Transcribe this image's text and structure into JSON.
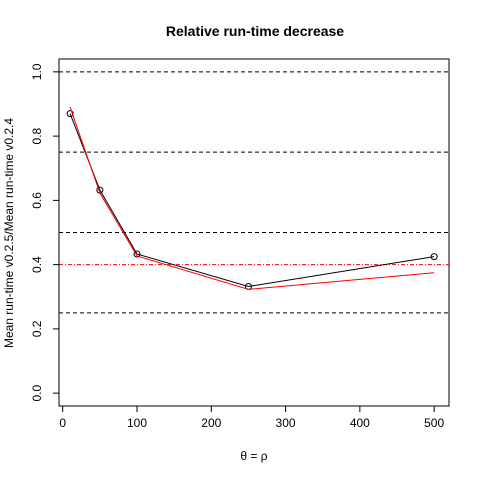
{
  "chart_data": {
    "type": "line",
    "title": "Relative run-time decrease",
    "xlabel": "θ = ρ",
    "ylabel": "Mean run-time v0.2.5/Mean run-time v0.2.4",
    "xlim": [
      -5,
      520
    ],
    "ylim": [
      -0.04,
      1.04
    ],
    "x_ticks": [
      0,
      100,
      200,
      300,
      400,
      500
    ],
    "y_ticks": [
      0.0,
      0.2,
      0.4,
      0.6,
      0.8,
      1.0
    ],
    "x_tick_labels": [
      "0",
      "100",
      "200",
      "300",
      "400",
      "500"
    ],
    "y_tick_labels": [
      "0.0",
      "0.2",
      "0.4",
      "0.6",
      "0.8",
      "1.0"
    ],
    "grid": false,
    "reference_lines": [
      {
        "y": 1.0,
        "style": "dashed",
        "color": "#000000"
      },
      {
        "y": 0.75,
        "style": "dashed",
        "color": "#000000"
      },
      {
        "y": 0.5,
        "style": "dashed",
        "color": "#000000"
      },
      {
        "y": 0.25,
        "style": "dashed",
        "color": "#000000"
      },
      {
        "y": 0.4,
        "style": "dashdot",
        "color": "#ff0000"
      }
    ],
    "series": [
      {
        "color": "#000000",
        "markers": "open-circle",
        "x": [
          10,
          50,
          100,
          250,
          500
        ],
        "y": [
          0.87,
          0.632,
          0.433,
          0.332,
          0.425
        ]
      },
      {
        "color": "#ff0000",
        "markers": "none",
        "x": [
          10,
          50,
          100,
          250,
          500
        ],
        "y": [
          0.89,
          0.623,
          0.427,
          0.323,
          0.375
        ]
      }
    ]
  }
}
